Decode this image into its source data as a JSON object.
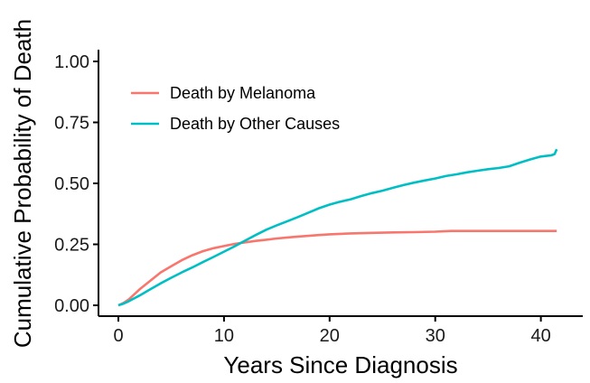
{
  "chart_data": {
    "type": "line",
    "title": "",
    "xlabel": "Years Since Diagnosis",
    "ylabel": "Cumulative Probability of Death",
    "xlim": [
      0,
      42
    ],
    "ylim": [
      0,
      1
    ],
    "x_ticks": [
      0,
      10,
      20,
      30,
      40
    ],
    "x_tick_labels": [
      "0",
      "10",
      "20",
      "30",
      "40"
    ],
    "y_ticks": [
      0,
      0.25,
      0.5,
      0.75,
      1.0
    ],
    "y_tick_labels": [
      "0.00",
      "0.25",
      "0.50",
      "0.75",
      "1.00"
    ],
    "grid": false,
    "legend_position": "top-left",
    "series": [
      {
        "name": "Death by Melanoma",
        "color": "#F8766D",
        "points": [
          [
            0,
            0.0
          ],
          [
            0.5,
            0.01
          ],
          [
            1,
            0.025
          ],
          [
            1.5,
            0.045
          ],
          [
            2,
            0.065
          ],
          [
            3,
            0.1
          ],
          [
            4,
            0.135
          ],
          [
            5,
            0.16
          ],
          [
            6,
            0.185
          ],
          [
            7,
            0.205
          ],
          [
            8,
            0.222
          ],
          [
            9,
            0.234
          ],
          [
            10,
            0.243
          ],
          [
            11,
            0.252
          ],
          [
            12,
            0.258
          ],
          [
            13,
            0.264
          ],
          [
            14,
            0.269
          ],
          [
            15,
            0.274
          ],
          [
            16,
            0.278
          ],
          [
            17,
            0.282
          ],
          [
            18,
            0.285
          ],
          [
            19,
            0.288
          ],
          [
            20,
            0.291
          ],
          [
            22,
            0.295
          ],
          [
            24,
            0.297
          ],
          [
            26,
            0.299
          ],
          [
            28,
            0.3
          ],
          [
            30,
            0.302
          ],
          [
            31.5,
            0.305
          ],
          [
            35,
            0.305
          ],
          [
            38,
            0.305
          ],
          [
            41.5,
            0.305
          ]
        ]
      },
      {
        "name": "Death by Other Causes",
        "color": "#00BFC4",
        "points": [
          [
            0,
            0.0
          ],
          [
            0.5,
            0.007
          ],
          [
            1,
            0.017
          ],
          [
            2,
            0.04
          ],
          [
            3,
            0.065
          ],
          [
            4,
            0.09
          ],
          [
            5,
            0.113
          ],
          [
            6,
            0.135
          ],
          [
            7,
            0.155
          ],
          [
            8,
            0.177
          ],
          [
            9,
            0.198
          ],
          [
            10,
            0.22
          ],
          [
            11,
            0.242
          ],
          [
            12,
            0.265
          ],
          [
            13,
            0.288
          ],
          [
            14,
            0.31
          ],
          [
            15,
            0.328
          ],
          [
            16,
            0.345
          ],
          [
            17,
            0.362
          ],
          [
            18,
            0.38
          ],
          [
            19,
            0.398
          ],
          [
            20,
            0.413
          ],
          [
            21,
            0.425
          ],
          [
            22,
            0.435
          ],
          [
            23,
            0.448
          ],
          [
            24,
            0.46
          ],
          [
            25,
            0.47
          ],
          [
            26,
            0.482
          ],
          [
            27,
            0.493
          ],
          [
            28,
            0.503
          ],
          [
            29,
            0.512
          ],
          [
            30,
            0.52
          ],
          [
            31,
            0.53
          ],
          [
            32,
            0.537
          ],
          [
            33,
            0.545
          ],
          [
            34,
            0.552
          ],
          [
            35,
            0.558
          ],
          [
            36,
            0.563
          ],
          [
            37,
            0.57
          ],
          [
            38,
            0.585
          ],
          [
            39,
            0.598
          ],
          [
            40,
            0.61
          ],
          [
            41,
            0.615
          ],
          [
            41.3,
            0.62
          ],
          [
            41.5,
            0.64
          ]
        ]
      }
    ]
  }
}
